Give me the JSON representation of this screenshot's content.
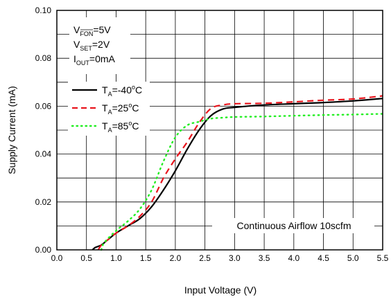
{
  "chart_data": {
    "type": "line",
    "xlabel": "Input Voltage (V)",
    "ylabel": "Supply Current (mA)",
    "xlim": [
      0.0,
      5.5
    ],
    "ylim": [
      0.0,
      0.1
    ],
    "x_ticks": [
      "0.0",
      "0.5",
      "1.0",
      "1.5",
      "2.0",
      "2.5",
      "3.0",
      "3.5",
      "4.0",
      "4.5",
      "5.0",
      "5.5"
    ],
    "y_ticks": [
      "0.00",
      "0.02",
      "0.04",
      "0.06",
      "0.08",
      "0.10"
    ],
    "grid": true,
    "conditions": [
      {
        "base": "V",
        "sub": "FON",
        "value": "=5V"
      },
      {
        "base": "V",
        "sub": "SET",
        "value": "=2V"
      },
      {
        "base": "I",
        "sub": "OUT",
        "value": "=0mA"
      }
    ],
    "annotation": "Continuous Airflow 10scfm",
    "legend_position": "left",
    "series": [
      {
        "base": "T",
        "sub": "A",
        "value": "=-40",
        "sup": "o",
        "unit": "C",
        "color": "#000000",
        "style": "solid",
        "points": [
          [
            0.6,
            0.0
          ],
          [
            0.65,
            0.001
          ],
          [
            0.75,
            0.002
          ],
          [
            0.85,
            0.004
          ],
          [
            1.0,
            0.007
          ],
          [
            1.2,
            0.01
          ],
          [
            1.4,
            0.013
          ],
          [
            1.6,
            0.018
          ],
          [
            1.8,
            0.025
          ],
          [
            2.0,
            0.033
          ],
          [
            2.2,
            0.042
          ],
          [
            2.4,
            0.05
          ],
          [
            2.6,
            0.056
          ],
          [
            2.8,
            0.0588
          ],
          [
            3.0,
            0.0595
          ],
          [
            3.5,
            0.0605
          ],
          [
            4.0,
            0.061
          ],
          [
            4.5,
            0.0615
          ],
          [
            5.0,
            0.0622
          ],
          [
            5.5,
            0.0632
          ]
        ]
      },
      {
        "base": "T",
        "sub": "A",
        "value": "=25",
        "sup": "o",
        "unit": "C",
        "color": "#e8141c",
        "style": "dashed",
        "points": [
          [
            0.7,
            0.0
          ],
          [
            0.75,
            0.002
          ],
          [
            0.85,
            0.004
          ],
          [
            1.0,
            0.007
          ],
          [
            1.2,
            0.01
          ],
          [
            1.4,
            0.014
          ],
          [
            1.6,
            0.02
          ],
          [
            1.8,
            0.03
          ],
          [
            2.0,
            0.038
          ],
          [
            2.2,
            0.045
          ],
          [
            2.4,
            0.053
          ],
          [
            2.6,
            0.059
          ],
          [
            2.8,
            0.0605
          ],
          [
            3.0,
            0.061
          ],
          [
            3.5,
            0.0612
          ],
          [
            4.0,
            0.0618
          ],
          [
            4.5,
            0.0625
          ],
          [
            5.0,
            0.063
          ],
          [
            5.5,
            0.0643
          ]
        ]
      },
      {
        "base": "T",
        "sub": "A",
        "value": "=85",
        "sup": "o",
        "unit": "C",
        "color": "#22ee22",
        "style": "dotted",
        "points": [
          [
            0.75,
            0.0
          ],
          [
            0.8,
            0.003
          ],
          [
            1.0,
            0.008
          ],
          [
            1.2,
            0.012
          ],
          [
            1.4,
            0.017
          ],
          [
            1.6,
            0.025
          ],
          [
            1.8,
            0.037
          ],
          [
            2.0,
            0.047
          ],
          [
            2.2,
            0.052
          ],
          [
            2.4,
            0.0535
          ],
          [
            2.6,
            0.0548
          ],
          [
            2.8,
            0.0552
          ],
          [
            3.0,
            0.0555
          ],
          [
            3.5,
            0.0557
          ],
          [
            4.0,
            0.056
          ],
          [
            4.5,
            0.0563
          ],
          [
            5.0,
            0.0565
          ],
          [
            5.5,
            0.0568
          ]
        ]
      }
    ]
  }
}
